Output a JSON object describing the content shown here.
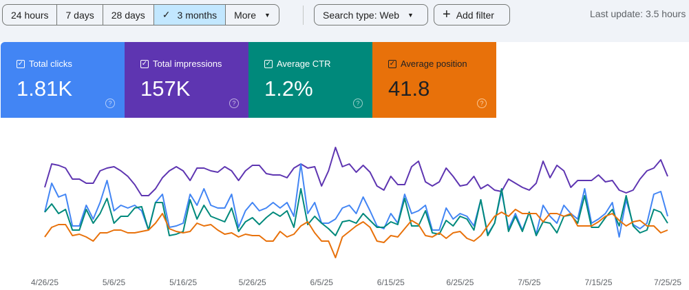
{
  "toolbar": {
    "ranges": [
      "24 hours",
      "7 days",
      "28 days",
      "3 months",
      "More"
    ],
    "selected_check": "✓",
    "search_type": "Search type: Web",
    "add_filter": "Add filter",
    "add_icon": "+",
    "last_update": "Last update: 3.5 hours"
  },
  "cards": [
    {
      "label": "Total clicks",
      "value": "1.81K",
      "color": "#4285f4"
    },
    {
      "label": "Total impressions",
      "value": "157K",
      "color": "#5e35b1"
    },
    {
      "label": "Average CTR",
      "value": "1.2%",
      "color": "#00897b"
    },
    {
      "label": "Average position",
      "value": "41.8",
      "color": "#e8710a"
    }
  ],
  "chart_data": {
    "type": "line",
    "x_range": [
      "4/26/25",
      "7/25/25"
    ],
    "x_interval": "daily",
    "x_ticks": [
      "4/26/25",
      "5/6/25",
      "5/16/25",
      "5/26/25",
      "6/5/25",
      "6/15/25",
      "6/25/25",
      "7/5/25",
      "7/15/25",
      "7/25/25"
    ],
    "y_axis": "hidden (each series on its own unlabeled relative scale, 0-100)",
    "grid": false,
    "series": [
      {
        "name": "Total impressions",
        "color": "#5e35b1",
        "values": [
          64,
          81,
          80,
          78,
          70,
          70,
          67,
          67,
          76,
          78,
          79,
          76,
          72,
          66,
          58,
          58,
          63,
          71,
          76,
          79,
          76,
          69,
          78,
          78,
          76,
          75,
          79,
          76,
          69,
          76,
          80,
          80,
          74,
          73,
          73,
          71,
          78,
          81,
          78,
          79,
          65,
          76,
          93,
          79,
          81,
          75,
          80,
          75,
          65,
          62,
          72,
          66,
          66,
          79,
          83,
          68,
          65,
          68,
          78,
          72,
          65,
          66,
          72,
          63,
          66,
          62,
          61,
          70,
          67,
          64,
          62,
          67,
          83,
          71,
          80,
          76,
          64,
          69,
          69,
          69,
          73,
          68,
          69,
          62,
          60,
          62,
          70,
          76,
          78,
          84,
          72
        ]
      },
      {
        "name": "Total clicks",
        "color": "#4285f4",
        "values": [
          46,
          67,
          57,
          59,
          36,
          36,
          51,
          41,
          53,
          69,
          47,
          51,
          49,
          51,
          47,
          33,
          53,
          59,
          35,
          36,
          38,
          59,
          51,
          63,
          51,
          49,
          49,
          59,
          35,
          47,
          53,
          47,
          49,
          53,
          49,
          53,
          43,
          81,
          45,
          53,
          38,
          38,
          41,
          49,
          51,
          45,
          57,
          47,
          36,
          34,
          45,
          38,
          59,
          45,
          47,
          51,
          33,
          33,
          49,
          41,
          45,
          43,
          36,
          55,
          30,
          38,
          61,
          34,
          45,
          33,
          46,
          30,
          51,
          43,
          38,
          51,
          45,
          41,
          63,
          38,
          41,
          45,
          53,
          28,
          55,
          37,
          34,
          38,
          59,
          61,
          43
        ]
      },
      {
        "name": "Average CTR",
        "color": "#00897b",
        "values": [
          46,
          52,
          45,
          48,
          33,
          33,
          48,
          38,
          45,
          56,
          38,
          43,
          43,
          49,
          50,
          33,
          53,
          53,
          29,
          30,
          32,
          55,
          41,
          51,
          43,
          41,
          39,
          49,
          32,
          39,
          42,
          37,
          42,
          46,
          43,
          47,
          35,
          63,
          37,
          43,
          38,
          34,
          29,
          39,
          40,
          38,
          45,
          40,
          35,
          35,
          39,
          37,
          56,
          36,
          36,
          47,
          31,
          30,
          40,
          36,
          43,
          41,
          33,
          55,
          29,
          38,
          63,
          32,
          43,
          32,
          46,
          29,
          39,
          38,
          31,
          43,
          44,
          38,
          58,
          35,
          35,
          42,
          48,
          36,
          58,
          36,
          31,
          33,
          48,
          46,
          38
        ]
      },
      {
        "name": "Average position",
        "color": "#e8710a",
        "values": [
          28,
          35,
          37,
          37,
          29,
          30,
          28,
          25,
          31,
          31,
          33,
          33,
          31,
          31,
          32,
          33,
          38,
          45,
          34,
          32,
          31,
          32,
          38,
          36,
          37,
          33,
          30,
          31,
          28,
          30,
          29,
          29,
          25,
          25,
          32,
          28,
          30,
          36,
          39,
          31,
          25,
          25,
          13,
          28,
          32,
          36,
          39,
          35,
          25,
          24,
          29,
          28,
          34,
          40,
          37,
          29,
          28,
          31,
          27,
          31,
          32,
          27,
          25,
          29,
          36,
          43,
          46,
          43,
          48,
          45,
          45,
          45,
          39,
          45,
          45,
          43,
          45,
          36,
          36,
          36,
          39,
          43,
          45,
          40,
          36,
          39,
          40,
          36,
          36,
          31,
          33
        ]
      }
    ]
  }
}
